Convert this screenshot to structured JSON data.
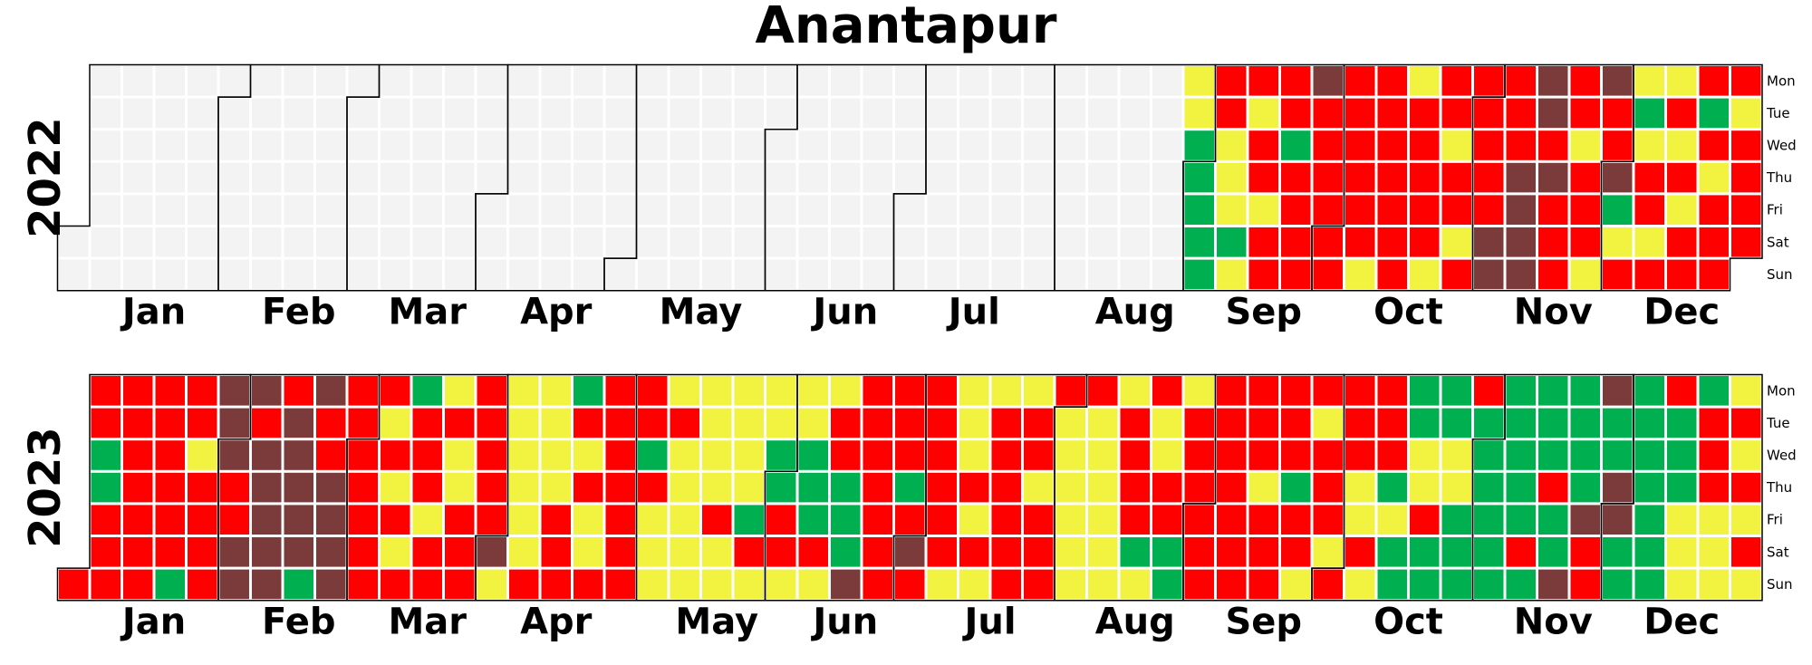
{
  "chart_data": {
    "type": "heatmap",
    "title": "Anantapur",
    "day_labels": [
      "Mon",
      "Tue",
      "Wed",
      "Thu",
      "Fri",
      "Sat",
      "Sun"
    ],
    "month_labels": [
      "Jan",
      "Feb",
      "Mar",
      "Apr",
      "May",
      "Jun",
      "Jul",
      "Aug",
      "Sep",
      "Oct",
      "Nov",
      "Dec"
    ],
    "colors": {
      "R": "#ff0000",
      "Y": "#f2f240",
      "G": "#00b050",
      "B": "#7b3b3b",
      "E": "#f3f3f3"
    },
    "years": [
      {
        "year": "2022",
        "start_weekday": 5,
        "data_start_day": 240,
        "days": "YYGGGGGRRYYYGYRYRRYRRRRGRRRRBRRRRRRRRRRRRYRRRRRRRYRRRRRYRRYRRYRRRRRRBBRRRBBBBBBRBRRRRRYRRRYBRRBGYRYGYRRYRYRYRYRRRGRYRRRRYRRRRRYRR"
      },
      {
        "year": "2023",
        "start_weekday": 6,
        "days": "RRRGGRRRRRRRRRRRRRRRRGRRYRRRRBBBRRBBBRBBBBBRBBBBBGBRRBBBBRRRRRRRRYRYRYRGRRRYRRYRYYRRRRRRRRBYYYYYYYRYYYYRRRGRYRYYRRRRRRRRRRGRYYYYRYYYYYYYYYRYYYYYYGRYYYGGRRYYYGGGRYYRRGGGBRRRRRRRRRRGRBRRRRRRRYYYYRYRYYRRRRRRYRRYRRRRYYYYYYRYYYYYYYRRRRGYRYYRRGGYRRRRRRRRRRRRRRRRYRRRRRRGRRYRYRRRYRRRRYYRYRRRGYGGGGYYRGGGGYYGGGRGGGGGGGGGGGRGGGGRGGBGGGGBRRBGGBBGGGGGGGGGRGGGYYYGRRRYYYYRYRYRYGYRYBRYRYYGRRYYYYYYRRRRRYYRRRRRYRRRRYGBRRRRBBBGRRRRGR"
      }
    ]
  }
}
